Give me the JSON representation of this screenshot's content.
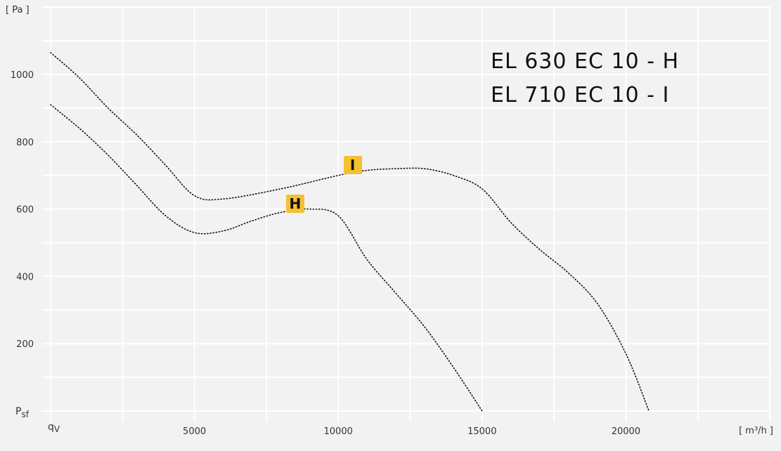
{
  "chart_data": {
    "type": "line",
    "title_lines": [
      "EL 630 EC 10 - H",
      "EL 710 EC 10 - I"
    ],
    "y_unit": "[ Pa ]",
    "x_unit": "[ m³/h ]",
    "y_axis_symbol": "Psf",
    "y_axis_symbol_sub": "sf",
    "y_axis_symbol_main": "P",
    "x_axis_symbol": "qV",
    "x_axis_symbol_main": "q",
    "x_axis_symbol_sub": "V",
    "xlim": [
      0,
      25000
    ],
    "ylim": [
      0,
      1200
    ],
    "x_ticks": [
      5000,
      10000,
      15000,
      20000
    ],
    "x_tick_labels": [
      "5000",
      "10000",
      "15000",
      "20000"
    ],
    "y_ticks": [
      200,
      400,
      600,
      800,
      1000
    ],
    "y_tick_labels": [
      "200",
      "400",
      "600",
      "800",
      "1000"
    ],
    "grid": true,
    "series": [
      {
        "name": "H",
        "x": [
          0,
          1000,
          2000,
          3000,
          4000,
          5000,
          6000,
          7000,
          8000,
          9000,
          10000,
          11000,
          12000,
          13000,
          14000,
          15000
        ],
        "values": [
          910,
          840,
          760,
          670,
          580,
          530,
          535,
          565,
          590,
          600,
          580,
          450,
          350,
          250,
          130,
          0
        ],
        "label": "H",
        "label_at": [
          8500,
          615
        ]
      },
      {
        "name": "I",
        "x": [
          0,
          1000,
          2000,
          3000,
          4000,
          5000,
          6000,
          8000,
          10000,
          11000,
          12000,
          13000,
          14000,
          15000,
          16000,
          17000,
          18000,
          19000,
          20000,
          20800
        ],
        "values": [
          1065,
          990,
          900,
          820,
          730,
          640,
          630,
          660,
          700,
          715,
          720,
          720,
          700,
          660,
          560,
          480,
          410,
          320,
          170,
          0
        ],
        "label": "I",
        "label_at": [
          10500,
          730
        ]
      }
    ]
  },
  "colors": {
    "label_box": "#f5c030",
    "grid": "#ffffff",
    "curve": "#111111"
  }
}
